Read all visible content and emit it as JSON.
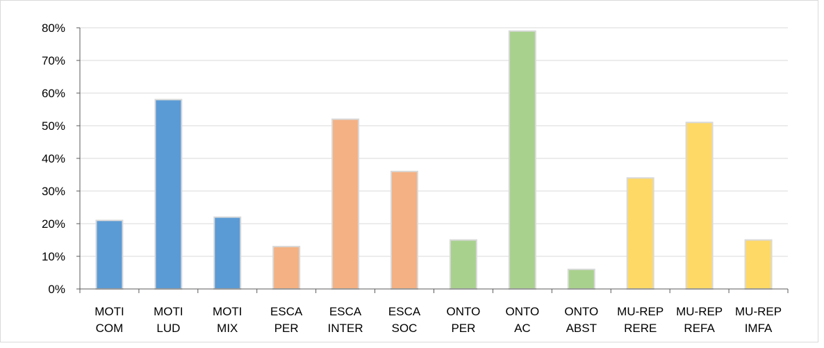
{
  "chart_data": {
    "type": "bar",
    "title": "",
    "xlabel": "",
    "ylabel": "",
    "ylim": [
      0,
      0.8
    ],
    "ytick_values": [
      0,
      0.1,
      0.2,
      0.3,
      0.4,
      0.5,
      0.6,
      0.7,
      0.8
    ],
    "ytick_labels": [
      "0%",
      "10%",
      "20%",
      "30%",
      "40%",
      "50%",
      "60%",
      "70%",
      "80%"
    ],
    "grid": true,
    "legend": "none",
    "categories": [
      [
        "MOTI",
        "COM"
      ],
      [
        "MOTI",
        "LUD"
      ],
      [
        "MOTI",
        "MIX"
      ],
      [
        "ESCA",
        "PER"
      ],
      [
        "ESCA",
        "INTER"
      ],
      [
        "ESCA",
        "SOC"
      ],
      [
        "ONTO",
        "PER"
      ],
      [
        "ONTO",
        "AC"
      ],
      [
        "ONTO",
        "ABST"
      ],
      [
        "MU-REP",
        "RERE"
      ],
      [
        "MU-REP",
        "REFA"
      ],
      [
        "MU-REP",
        "IMFA"
      ]
    ],
    "values": [
      0.21,
      0.58,
      0.22,
      0.13,
      0.52,
      0.36,
      0.15,
      0.79,
      0.06,
      0.34,
      0.51,
      0.15
    ],
    "bar_colors": [
      "#5b9bd5",
      "#5b9bd5",
      "#5b9bd5",
      "#f4b183",
      "#f4b183",
      "#f4b183",
      "#a9d18e",
      "#a9d18e",
      "#a9d18e",
      "#ffd966",
      "#ffd966",
      "#ffd966"
    ],
    "gridline_color": "#d9d9d9",
    "axis_color": "#595959",
    "bar_outline_color": "#d9d9d9"
  }
}
